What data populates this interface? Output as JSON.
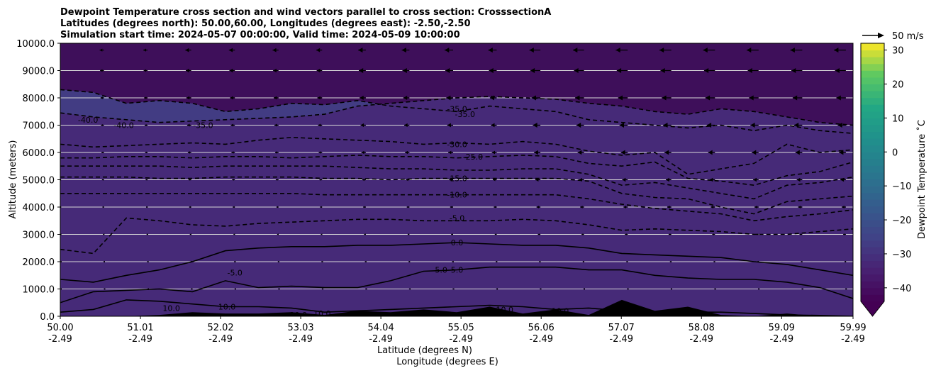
{
  "chart_data": {
    "type": "contour",
    "title_lines": [
      "Dewpoint Temperature cross section and wind vectors parallel to cross section: CrosssectionA",
      "Latitudes (degrees north): 50.00,60.00, Longitudes (degrees east): -2.50,-2.50",
      "Simulation start time: 2024-05-07 00:00:00, Valid time: 2024-05-09 10:00:00"
    ],
    "xlabel": "Latitude (degrees N)",
    "xlabel2": "Longitude (degrees E)",
    "ylabel": "Altitude (meters)",
    "colorbar_label": "Dewpoint Temperature ˚C",
    "colorbar_extend": "min",
    "colorbar_range": [
      -44,
      32
    ],
    "colorbar_ticks": [
      "30",
      "20",
      "10",
      "0",
      "−10",
      "−20",
      "−30",
      "−40"
    ],
    "colorbar_tick_values": [
      30,
      20,
      10,
      0,
      -10,
      -20,
      -30,
      -40
    ],
    "quiver_key_label": "50 m/s",
    "xlim": [
      50.0,
      59.99
    ],
    "ylim": [
      0,
      10000
    ],
    "grid": "horizontal",
    "yticks": [
      "0.0",
      "1000.0",
      "2000.0",
      "3000.0",
      "4000.0",
      "5000.0",
      "6000.0",
      "7000.0",
      "8000.0",
      "9000.0",
      "10000.0"
    ],
    "ytick_values": [
      0,
      1000,
      2000,
      3000,
      4000,
      5000,
      6000,
      7000,
      8000,
      9000,
      10000
    ],
    "xticks_lat": [
      "50.00",
      "51.01",
      "52.02",
      "53.03",
      "54.04",
      "55.05",
      "56.06",
      "57.07",
      "58.08",
      "59.09",
      "59.99"
    ],
    "xtick_lat_values": [
      50.0,
      51.01,
      52.02,
      53.03,
      54.04,
      55.05,
      56.06,
      57.07,
      58.08,
      59.09,
      59.99
    ],
    "xticks_lon": [
      "-2.49",
      "-2.49",
      "-2.49",
      "-2.49",
      "-2.49",
      "-2.49",
      "-2.49",
      "-2.49",
      "-2.49",
      "-2.49",
      "-2.49"
    ],
    "contour_labels": [
      {
        "text": "-35.0",
        "x": 55.0,
        "y": 7600
      },
      {
        "text": "-35.0",
        "x": 55.1,
        "y": 7400
      },
      {
        "text": "-40.0",
        "x": 50.35,
        "y": 7200
      },
      {
        "text": "-40.0",
        "x": 50.8,
        "y": 7000
      },
      {
        "text": "-35.0",
        "x": 51.8,
        "y": 7000
      },
      {
        "text": "-30.0",
        "x": 55.0,
        "y": 6300
      },
      {
        "text": "-25.0",
        "x": 55.2,
        "y": 5850
      },
      {
        "text": "-15.0",
        "x": 55.0,
        "y": 5050
      },
      {
        "text": "-10.0",
        "x": 55.0,
        "y": 4450
      },
      {
        "text": "-5.0",
        "x": 55.0,
        "y": 3600
      },
      {
        "text": "0.0",
        "x": 55.0,
        "y": 2700
      },
      {
        "text": "5.0",
        "x": 54.8,
        "y": 1700
      },
      {
        "text": "5.0",
        "x": 55.0,
        "y": 1700
      },
      {
        "text": "-5.0",
        "x": 52.2,
        "y": 1600
      },
      {
        "text": "10.0",
        "x": 51.4,
        "y": 300
      },
      {
        "text": "10.0",
        "x": 52.1,
        "y": 350
      },
      {
        "text": "10.0",
        "x": 53.0,
        "y": 50
      },
      {
        "text": "10.0",
        "x": 53.3,
        "y": 100
      },
      {
        "text": "10.0",
        "x": 55.6,
        "y": 250
      },
      {
        "text": "10.0",
        "x": 56.3,
        "y": 200
      }
    ],
    "levels": [
      {
        "value": -40,
        "y": [
          7450,
          7300,
          7200,
          7100,
          7150,
          7200,
          7250,
          7300,
          7400,
          7700,
          7800,
          7900,
          8000,
          8050,
          8000,
          7950,
          7800,
          7700,
          7500,
          7400,
          7600,
          7500,
          7300,
          7100,
          7000
        ]
      },
      {
        "value": -35,
        "y": [
          8300,
          8200,
          7800,
          7900,
          7800,
          7500,
          7600,
          7800,
          7750,
          7900,
          7700,
          7600,
          7500,
          7700,
          7600,
          7500,
          7200,
          7100,
          7000,
          6900,
          7000,
          6800,
          7000,
          6800,
          6700
        ]
      },
      {
        "value": -30,
        "y": [
          6300,
          6200,
          6250,
          6300,
          6350,
          6300,
          6450,
          6550,
          6500,
          6450,
          6400,
          6300,
          6350,
          6300,
          6400,
          6300,
          6050,
          5900,
          6000,
          5200,
          5400,
          5600,
          6300,
          6000,
          6100
        ]
      },
      {
        "value": -25,
        "y": [
          5800,
          5800,
          5850,
          5850,
          5800,
          5850,
          5850,
          5800,
          5850,
          5900,
          5850,
          5850,
          5800,
          5850,
          5900,
          5850,
          5600,
          5500,
          5650,
          5050,
          4950,
          4800,
          5150,
          5300,
          5650
        ]
      },
      {
        "value": -20,
        "y": [
          5500,
          5500,
          5500,
          5500,
          5450,
          5500,
          5500,
          5500,
          5500,
          5450,
          5400,
          5400,
          5350,
          5350,
          5400,
          5400,
          5200,
          4800,
          4900,
          4700,
          4500,
          4300,
          4800,
          4900,
          5100
        ]
      },
      {
        "value": -15,
        "y": [
          5100,
          5100,
          5100,
          5050,
          5050,
          5100,
          5100,
          5100,
          5050,
          5050,
          5000,
          5050,
          5050,
          5050,
          5050,
          5050,
          4950,
          4500,
          4350,
          4300,
          4000,
          3750,
          4200,
          4300,
          4400
        ]
      },
      {
        "value": -10,
        "y": [
          4500,
          4500,
          4500,
          4500,
          4500,
          4500,
          4500,
          4500,
          4450,
          4450,
          4450,
          4450,
          4450,
          4450,
          4450,
          4450,
          4300,
          4100,
          3950,
          3850,
          3750,
          3500,
          3650,
          3750,
          3900
        ]
      },
      {
        "value": -5,
        "y": [
          2450,
          2300,
          3600,
          3500,
          3350,
          3300,
          3400,
          3450,
          3500,
          3550,
          3550,
          3500,
          3500,
          3500,
          3550,
          3500,
          3350,
          3150,
          3200,
          3150,
          3100,
          3000,
          3000,
          3100,
          3200
        ]
      },
      {
        "value": 0,
        "y": [
          1350,
          1250,
          1500,
          1700,
          2000,
          2400,
          2500,
          2550,
          2550,
          2600,
          2600,
          2650,
          2700,
          2650,
          2600,
          2600,
          2500,
          2300,
          2250,
          2200,
          2150,
          2000,
          1900,
          1700,
          1500
        ]
      },
      {
        "value": 5,
        "y": [
          500,
          900,
          950,
          1000,
          900,
          1300,
          1050,
          1100,
          1050,
          1050,
          1300,
          1650,
          1700,
          1800,
          1800,
          1800,
          1700,
          1700,
          1500,
          1400,
          1350,
          1350,
          1250,
          1050,
          650
        ]
      },
      {
        "value": 10,
        "y": [
          150,
          250,
          600,
          550,
          450,
          350,
          350,
          300,
          150,
          200,
          250,
          300,
          350,
          400,
          350,
          250,
          300,
          200,
          150,
          150,
          150,
          100,
          50,
          30,
          0
        ]
      }
    ],
    "terrain": [
      0,
      0,
      0,
      50,
      150,
      100,
      100,
      150,
      50,
      200,
      150,
      250,
      150,
      350,
      100,
      250,
      50,
      600,
      200,
      350,
      50,
      0,
      100,
      0,
      0
    ],
    "vectors": {
      "x": [
        50.0,
        50.55,
        51.1,
        51.65,
        52.2,
        52.75,
        53.3,
        53.85,
        54.4,
        54.95,
        55.5,
        56.05,
        56.6,
        57.15,
        57.7,
        58.25,
        58.8,
        59.35,
        59.9
      ],
      "y": [
        9750,
        9000,
        8000,
        7000,
        6000,
        5000,
        4000,
        3000,
        2000,
        1000
      ],
      "u_top": [
        -2,
        -5,
        -5,
        -7,
        -7,
        -7,
        -7,
        -9,
        -9,
        -10,
        -10,
        -13,
        -13,
        -14,
        -14,
        -14,
        -14,
        -14,
        -14
      ]
    }
  }
}
